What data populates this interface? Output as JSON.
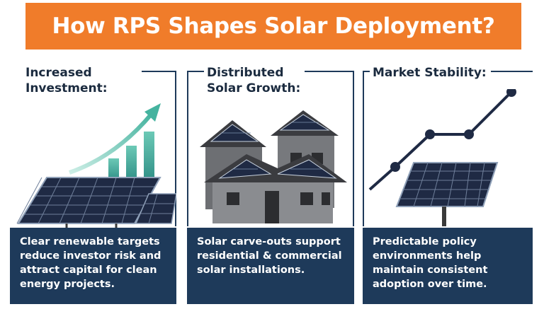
{
  "title": "How RPS Shapes Solar Deployment?",
  "panels": [
    {
      "heading_line1": "Increased",
      "heading_line2": "Investment:",
      "description": "Clear renewable targets reduce investor risk and attract capital for clean energy projects.",
      "icon": "solar-panels-rising-bars-icon"
    },
    {
      "heading_line1": "Distributed",
      "heading_line2": "Solar Growth:",
      "description": "Solar carve-outs support residential & commercial solar installations.",
      "icon": "houses-with-rooftop-solar-icon"
    },
    {
      "heading_line1": "Market Stability:",
      "heading_line2": "",
      "description": "Predictable policy environments help maintain consistent adoption over time.",
      "icon": "solar-panel-trend-line-icon"
    }
  ],
  "colors": {
    "banner": "#f07c2a",
    "navy": "#1e3a5a",
    "teal": "#5fc2b0",
    "panel_dark": "#1f2a44"
  }
}
